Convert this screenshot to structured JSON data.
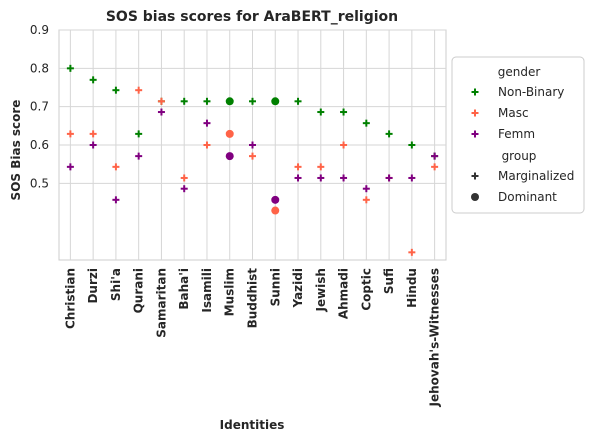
{
  "chart_data": {
    "type": "scatter",
    "title": "SOS bias scores for AraBERT_religion",
    "xlabel": "Identities",
    "ylabel": "SOS Bias score",
    "ylim": [
      0.3,
      0.9
    ],
    "yticks": [
      "0.5",
      "0.6",
      "0.7",
      "0.8",
      "0.9"
    ],
    "grid": true,
    "categories": [
      "Christian",
      "Durzi",
      "Shi'a",
      "Qurani",
      "Samaritan",
      "Baha'i",
      "Isamili",
      "Muslim",
      "Buddhist",
      "Sunni",
      "Yazidi",
      "Jewish",
      "Ahmadi",
      "Coptic",
      "Sufi",
      "Hindu",
      "Jehovah's-Witnesses"
    ],
    "group_by_category": [
      "Marginalized",
      "Marginalized",
      "Marginalized",
      "Marginalized",
      "Marginalized",
      "Marginalized",
      "Marginalized",
      "Dominant",
      "Marginalized",
      "Dominant",
      "Marginalized",
      "Marginalized",
      "Marginalized",
      "Marginalized",
      "Marginalized",
      "Marginalized",
      "Marginalized"
    ],
    "series": [
      {
        "name": "Non-Binary",
        "color": "#008000",
        "values": [
          0.8,
          0.77,
          0.743,
          0.629,
          0.714,
          0.714,
          0.714,
          0.714,
          0.714,
          0.714,
          0.714,
          0.686,
          0.686,
          0.657,
          0.629,
          0.6,
          0.571
        ]
      },
      {
        "name": "Masc",
        "color": "#FF6347",
        "values": [
          0.629,
          0.629,
          0.543,
          0.743,
          0.714,
          0.514,
          0.6,
          0.629,
          0.571,
          0.429,
          0.543,
          0.543,
          0.6,
          0.457,
          0.514,
          0.32,
          0.543
        ]
      },
      {
        "name": "Femm",
        "color": "#800080",
        "values": [
          0.543,
          0.6,
          0.457,
          0.571,
          0.686,
          0.486,
          0.657,
          0.571,
          0.6,
          0.457,
          0.514,
          0.514,
          0.514,
          0.486,
          0.514,
          0.514,
          0.571
        ]
      }
    ],
    "legend": {
      "position": "right",
      "gender_title": "gender",
      "gender_entries": [
        "Non-Binary",
        "Masc",
        "Femm"
      ],
      "group_title": "group",
      "group_entries": [
        {
          "label": "Marginalized",
          "marker": "plus"
        },
        {
          "label": "Dominant",
          "marker": "circle"
        }
      ]
    }
  }
}
